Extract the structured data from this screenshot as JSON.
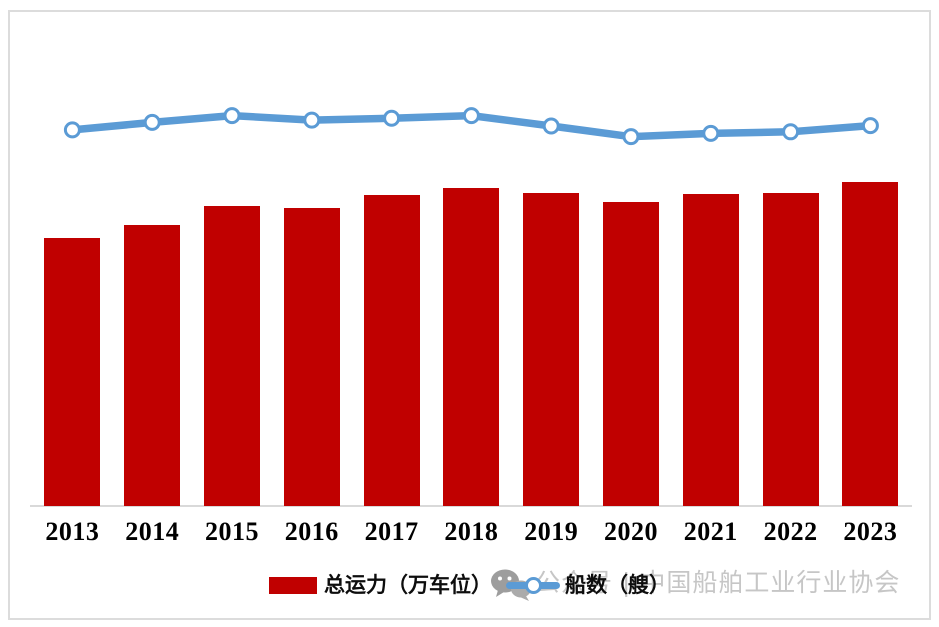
{
  "colors": {
    "bar_red": "#c00000",
    "line_blue": "#5b9bd5",
    "frame_border": "#dcdcdc",
    "axis_line": "#d9d9d9",
    "watermark_gray": "#c6c6c6",
    "label_black": "#000000"
  },
  "chart_data": {
    "type": "bar",
    "subtype": "combo-bar-line",
    "title": "",
    "xlabel": "",
    "ylabel": "",
    "categories": [
      "2013",
      "2014",
      "2015",
      "2016",
      "2017",
      "2018",
      "2019",
      "2020",
      "2021",
      "2022",
      "2023"
    ],
    "series": [
      {
        "name": "总运力（万车位）",
        "type": "bar",
        "color": "#c00000",
        "values": [
          82.8,
          86.8,
          92.8,
          92.1,
          96.1,
          98.2,
          96.8,
          93.8,
          96.4,
          96.8,
          100.0
        ]
      },
      {
        "name": "船数（艘）",
        "type": "line",
        "color": "#5b9bd5",
        "marker": "circle-white-fill",
        "values": [
          116.2,
          118.5,
          120.6,
          119.2,
          119.8,
          120.6,
          117.4,
          114.1,
          115.1,
          115.6,
          117.5
        ]
      }
    ],
    "ylim": [
      0,
      130
    ],
    "value_axis_visible": false,
    "gridlines": false,
    "legend_position": "bottom",
    "note": "Chart displays no numeric value axis; series values are relative estimates normalized so the 2023 bar = 100."
  },
  "legend": {
    "items": [
      {
        "label": "总运力（万车位）",
        "swatch": "bar",
        "color": "#c00000"
      },
      {
        "label": "船数（艘）",
        "swatch": "line-marker",
        "color": "#5b9bd5"
      }
    ]
  },
  "watermark": {
    "icon": "wechat-icon",
    "text": "公众号 | 中国船舶工业行业协会"
  }
}
